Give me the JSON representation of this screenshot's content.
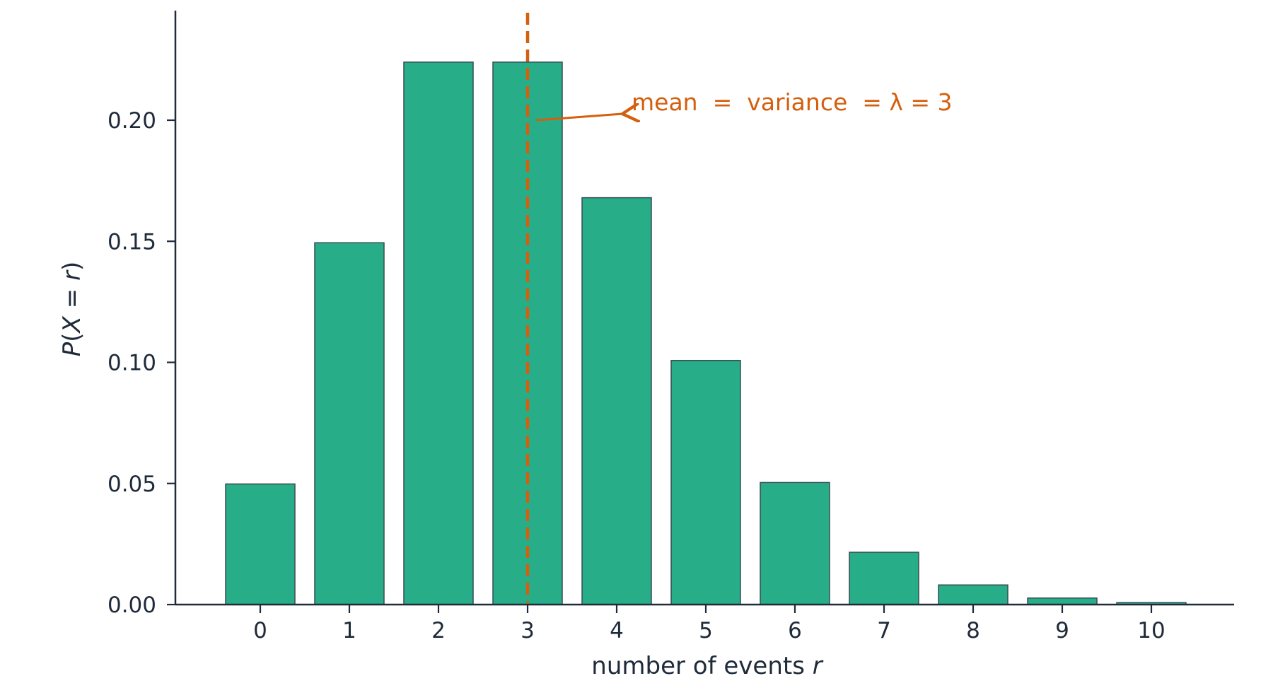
{
  "chart_data": {
    "type": "bar",
    "categories": [
      "0",
      "1",
      "2",
      "3",
      "4",
      "5",
      "6",
      "7",
      "8",
      "9",
      "10"
    ],
    "x": [
      0,
      1,
      2,
      3,
      4,
      5,
      6,
      7,
      8,
      9,
      10
    ],
    "values": [
      0.0498,
      0.1494,
      0.224,
      0.224,
      0.168,
      0.1008,
      0.0504,
      0.0216,
      0.0081,
      0.0027,
      0.0008
    ],
    "xlabel": "number of events r",
    "xlabel_parts": {
      "text": "number of events ",
      "var": "r"
    },
    "ylabel": "P(X = r)",
    "ylabel_parts": {
      "p": "P",
      "open": "(",
      "x": "X",
      "eq": " = ",
      "r": "r",
      "close": ")"
    },
    "ylim": [
      0,
      0.24
    ],
    "yticks": [
      0.0,
      0.05,
      0.1,
      0.15,
      0.2
    ],
    "ytick_labels": [
      "0.00",
      "0.05",
      "0.10",
      "0.15",
      "0.20"
    ],
    "grid": false,
    "mean_line": {
      "x": 3,
      "style": "dashed",
      "color": "#d45f0e"
    },
    "annotation": {
      "text": "mean  =  variance  = λ = 3",
      "points_to": {
        "x": 3,
        "y": 0.2
      },
      "color": "#d45f0e"
    },
    "colors": {
      "bar_fill": "#27ad88",
      "bar_edge": "#3a4a55",
      "axis": "#1f2a3a"
    }
  }
}
